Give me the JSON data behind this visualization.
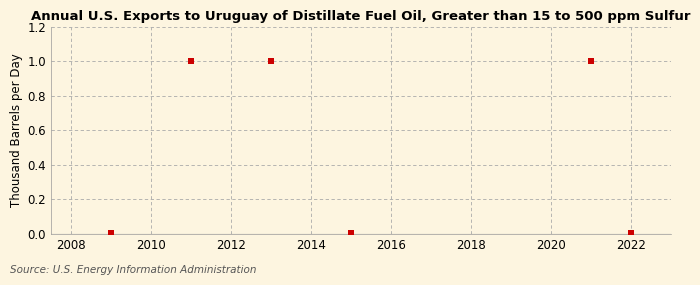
{
  "title": "Annual U.S. Exports to Uruguay of Distillate Fuel Oil, Greater than 15 to 500 ppm Sulfur",
  "ylabel": "Thousand Barrels per Day",
  "source": "Source: U.S. Energy Information Administration",
  "years": [
    2009,
    2011,
    2013,
    2015,
    2021,
    2022
  ],
  "values": [
    0.003,
    1.0,
    1.0,
    0.003,
    1.0,
    0.003
  ],
  "xlim": [
    2007.5,
    2023.0
  ],
  "ylim": [
    0.0,
    1.2
  ],
  "yticks": [
    0.0,
    0.2,
    0.4,
    0.6,
    0.8,
    1.0,
    1.2
  ],
  "xticks": [
    2008,
    2010,
    2012,
    2014,
    2016,
    2018,
    2020,
    2022
  ],
  "marker_color": "#cc0000",
  "marker_size": 4,
  "marker_style": "s",
  "grid_color": "#aaaaaa",
  "background_color": "#fdf5e0",
  "title_fontsize": 9.5,
  "label_fontsize": 8.5,
  "tick_fontsize": 8.5,
  "source_fontsize": 7.5
}
